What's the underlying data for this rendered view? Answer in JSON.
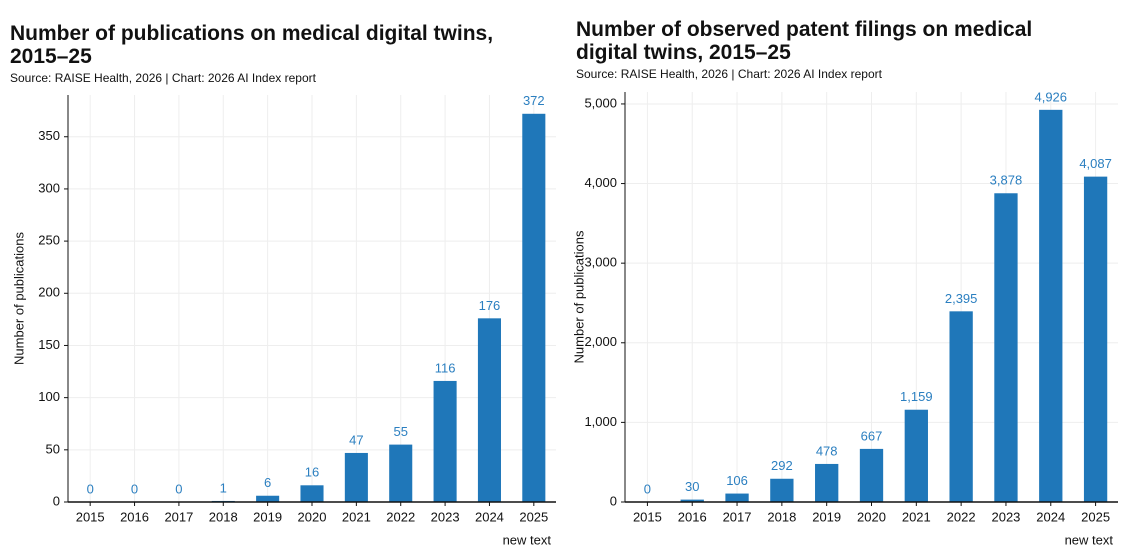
{
  "chart_data": [
    {
      "type": "bar",
      "title": "Number of publications on medical digital twins, 2015–25",
      "subtitle": "Source: RAISE Health, 2026 | Chart: 2026 AI Index report",
      "y_label": "Number of publications",
      "categories": [
        "2015",
        "2016",
        "2017",
        "2018",
        "2019",
        "2020",
        "2021",
        "2022",
        "2023",
        "2024",
        "2025"
      ],
      "values": [
        0,
        0,
        0,
        1,
        6,
        16,
        47,
        55,
        116,
        176,
        372
      ],
      "color": "#1f77b9",
      "ylim": [
        0,
        390
      ],
      "yticks": [
        0,
        50,
        100,
        150,
        200,
        250,
        300,
        350
      ],
      "grid": true,
      "note": "new text"
    },
    {
      "type": "bar",
      "title": "Number of observed patent filings on medical digital twins, 2015–25",
      "subtitle": "Source: RAISE Health, 2026 | Chart: 2026 AI Index report",
      "y_label": "Number of publications",
      "categories": [
        "2015",
        "2016",
        "2017",
        "2018",
        "2019",
        "2020",
        "2021",
        "2022",
        "2023",
        "2024",
        "2025"
      ],
      "values": [
        0,
        30,
        106,
        292,
        478,
        667,
        1159,
        2395,
        3878,
        4926,
        4087
      ],
      "value_labels": [
        "0",
        "30",
        "106",
        "292",
        "478",
        "667",
        "1,159",
        "2,395",
        "3,878",
        "4,926",
        "4,087"
      ],
      "color": "#1f77b9",
      "ylim": [
        0,
        5150
      ],
      "yticks": [
        0,
        {
          "value": 1000,
          "label": "1,000"
        },
        {
          "value": 2000,
          "label": "2,000"
        },
        {
          "value": 3000,
          "label": "3,000"
        },
        {
          "value": 4000,
          "label": "4,000"
        },
        {
          "value": 5000,
          "label": "5,000"
        }
      ],
      "grid": true,
      "note": "new text"
    }
  ]
}
